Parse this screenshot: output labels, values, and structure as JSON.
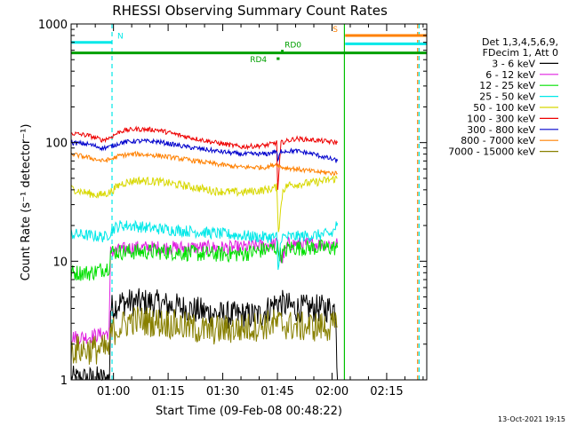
{
  "chart_data": {
    "type": "line",
    "title": "RHESSI Observing Summary Count Rates",
    "xlabel": "Start Time (09-Feb-08 00:48:22)",
    "ylabel": "Count Rate (s⁻¹ detector⁻¹)",
    "yscale": "log",
    "ylim": [
      1,
      1000
    ],
    "xlim_minutes_after_00_00": [
      48.37,
      146
    ],
    "x_ticks": [
      {
        "label": "01:00",
        "minute": 60
      },
      {
        "label": "01:15",
        "minute": 75
      },
      {
        "label": "01:30",
        "minute": 90
      },
      {
        "label": "01:45",
        "minute": 105
      },
      {
        "label": "02:00",
        "minute": 120
      },
      {
        "label": "02:15",
        "minute": 135
      }
    ],
    "y_ticks": [
      {
        "label": "1",
        "value": 1
      },
      {
        "label": "10",
        "value": 10
      },
      {
        "label": "100",
        "value": 100
      },
      {
        "label": "1000",
        "value": 1000
      }
    ],
    "legend": {
      "placement": "right",
      "header": [
        "Det 1,3,4,5,6,9,",
        "FDecim 1, Att 0"
      ]
    },
    "series": [
      {
        "name": "3 - 6 keV",
        "color": "#000000",
        "x": [
          48.4,
          58.9,
          59.2,
          62,
          70,
          80,
          90,
          100,
          105,
          110,
          115,
          121,
          121.5
        ],
        "y": [
          1,
          1,
          4,
          4.5,
          4.5,
          4,
          3.5,
          3.5,
          4.5,
          4,
          4,
          4,
          1
        ]
      },
      {
        "name": "6 - 12 keV",
        "color": "#e020e0",
        "x": [
          48.4,
          53,
          58.8,
          59.2,
          65,
          75,
          85,
          95,
          105,
          106,
          108,
          115,
          121.5
        ],
        "y": [
          2.3,
          2.3,
          2.5,
          12,
          13,
          13,
          13,
          13,
          14,
          10,
          14,
          14,
          14
        ]
      },
      {
        "name": "12 - 25 keV",
        "color": "#00e000",
        "x": [
          48.4,
          54,
          58.8,
          59.2,
          65,
          75,
          85,
          95,
          105,
          106,
          108,
          115,
          121.5
        ],
        "y": [
          8,
          8,
          9,
          12,
          12,
          12,
          11.5,
          11.5,
          13,
          11,
          13,
          13,
          13
        ]
      },
      {
        "name": "25 - 50 keV",
        "color": "#00e8e8",
        "x": [
          48.4,
          58,
          60,
          62,
          65,
          70,
          80,
          90,
          100,
          104.8,
          105.2,
          106,
          108,
          115,
          120,
          121.5
        ],
        "y": [
          17,
          16,
          19,
          20,
          20,
          19,
          18,
          17,
          16,
          16,
          8,
          16,
          16,
          16.5,
          17,
          21
        ]
      },
      {
        "name": "50 - 100 keV",
        "color": "#d8d800",
        "x": [
          48.4,
          52,
          56,
          59,
          62,
          66,
          72,
          80,
          88,
          95,
          102,
          104.8,
          105.3,
          106.5,
          108,
          115,
          121.5
        ],
        "y": [
          41,
          38,
          36,
          38,
          45,
          48,
          47,
          43,
          39,
          38,
          40,
          42,
          18,
          40,
          44,
          46,
          50
        ]
      },
      {
        "name": "100 - 300 keV",
        "color": "#ee0000",
        "x": [
          48.4,
          53,
          57,
          59,
          62,
          66,
          72,
          80,
          88,
          95,
          102,
          104.8,
          105.1,
          106,
          110,
          115,
          121.5
        ],
        "y": [
          120,
          115,
          105,
          110,
          125,
          130,
          128,
          112,
          100,
          92,
          95,
          100,
          40,
          100,
          108,
          105,
          100
        ]
      },
      {
        "name": "300 - 800 keV",
        "color": "#0000cc",
        "x": [
          48.4,
          53,
          57,
          59,
          62,
          66,
          72,
          80,
          88,
          95,
          102,
          104.8,
          105.1,
          106,
          110,
          115,
          121.5
        ],
        "y": [
          100,
          97,
          90,
          92,
          100,
          103,
          102,
          92,
          85,
          80,
          80,
          85,
          70,
          85,
          85,
          80,
          70
        ]
      },
      {
        "name": "800 - 7000 keV",
        "color": "#ff8000",
        "x": [
          48.4,
          53,
          57,
          59,
          62,
          66,
          72,
          80,
          88,
          95,
          102,
          104.8,
          106,
          110,
          115,
          121.5
        ],
        "y": [
          80,
          75,
          70,
          72,
          78,
          80,
          78,
          72,
          66,
          62,
          62,
          66,
          62,
          60,
          57,
          55
        ]
      },
      {
        "name": "7000 - 15000 keV",
        "color": "#888000",
        "x": [
          48.4,
          58.9,
          59.2,
          65,
          75,
          85,
          95,
          105,
          110,
          115,
          121.5
        ],
        "y": [
          1.8,
          1.8,
          2.5,
          3.2,
          3,
          2.6,
          2.7,
          3,
          2.8,
          2.8,
          2.8
        ]
      }
    ],
    "state_bars": [
      {
        "label": "N",
        "color": "#00e8e8",
        "value": 700,
        "x_start": 48.4,
        "x_end": 59.6
      },
      {
        "label": "",
        "color": "#00a000",
        "value": 570,
        "x_start": 48.4,
        "x_end": 146
      },
      {
        "label": "RD0",
        "color": "#00a000",
        "value": 590,
        "x_start": 106,
        "x_end": 106.7
      },
      {
        "label": "RD4",
        "color": "#00a000",
        "value": 510,
        "x_start": 104.8,
        "x_end": 105.6
      },
      {
        "label": "S",
        "color": "#ff8000",
        "value": 800,
        "x_start": 123.6,
        "x_end": 146
      },
      {
        "label": "",
        "color": "#00e8e8",
        "value": 680,
        "x_start": 123.6,
        "x_end": 146
      }
    ],
    "vertical_markers": [
      {
        "minute": 59.6,
        "color": "#00e8e8",
        "style": "dashed"
      },
      {
        "minute": 123.4,
        "color": "#00c000",
        "style": "solid"
      },
      {
        "minute": 143.5,
        "color": "#ff8000",
        "style": "dashed"
      },
      {
        "minute": 143.9,
        "color": "#00e8e8",
        "style": "dashed"
      }
    ],
    "footer_date": "13-Oct-2021 19:15"
  }
}
